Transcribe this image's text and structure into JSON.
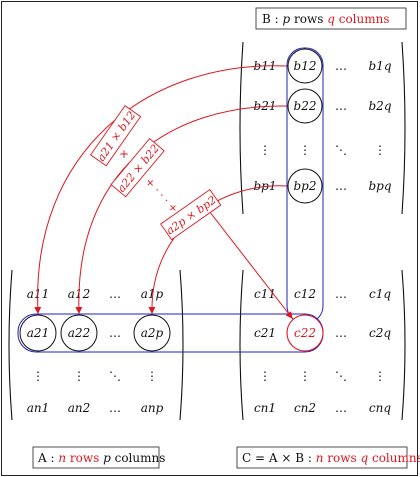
{
  "b_label": {
    "prefix": "B : ",
    "rows": "p",
    "mid": " rows ",
    "cols": "q",
    "suffix": " columns"
  },
  "a_label": {
    "prefix": "A : ",
    "rows": "n",
    "mid": " rows ",
    "cols": "p",
    "suffix": " columns"
  },
  "c_label": {
    "prefix": "C = A × B : ",
    "rows": "n",
    "mid": " rows ",
    "cols": "q",
    "suffix": " columns"
  },
  "matrix_b": {
    "rows": [
      [
        "b11",
        "b12",
        "…",
        "b1q"
      ],
      [
        "b21",
        "b22",
        "…",
        "b2q"
      ],
      [
        "⋮",
        "⋮",
        "⋱",
        "⋮"
      ],
      [
        "bp1",
        "bp2",
        "…",
        "bpq"
      ]
    ]
  },
  "matrix_a": {
    "rows": [
      [
        "a11",
        "a12",
        "…",
        "a1p"
      ],
      [
        "a21",
        "a22",
        "…",
        "a2p"
      ],
      [
        "⋮",
        "⋮",
        "⋱",
        "⋮"
      ],
      [
        "an1",
        "an2",
        "…",
        "anp"
      ]
    ]
  },
  "matrix_c": {
    "rows": [
      [
        "c11",
        "c12",
        "…",
        "c1q"
      ],
      [
        "c21",
        "c22",
        "…",
        "c2q"
      ],
      [
        "⋮",
        "⋮",
        "⋱",
        "⋮"
      ],
      [
        "cn1",
        "cn2",
        "…",
        "cnq"
      ]
    ]
  },
  "products": {
    "p1": "a21 × b12",
    "plus1": "+",
    "p2": "a22 × b22",
    "plus2": "+ · · · +",
    "p3": "a2p × bp2"
  },
  "colors": {
    "highlight": "#e0161e",
    "row_column_box": "#2020c0",
    "ink": "#111111"
  }
}
